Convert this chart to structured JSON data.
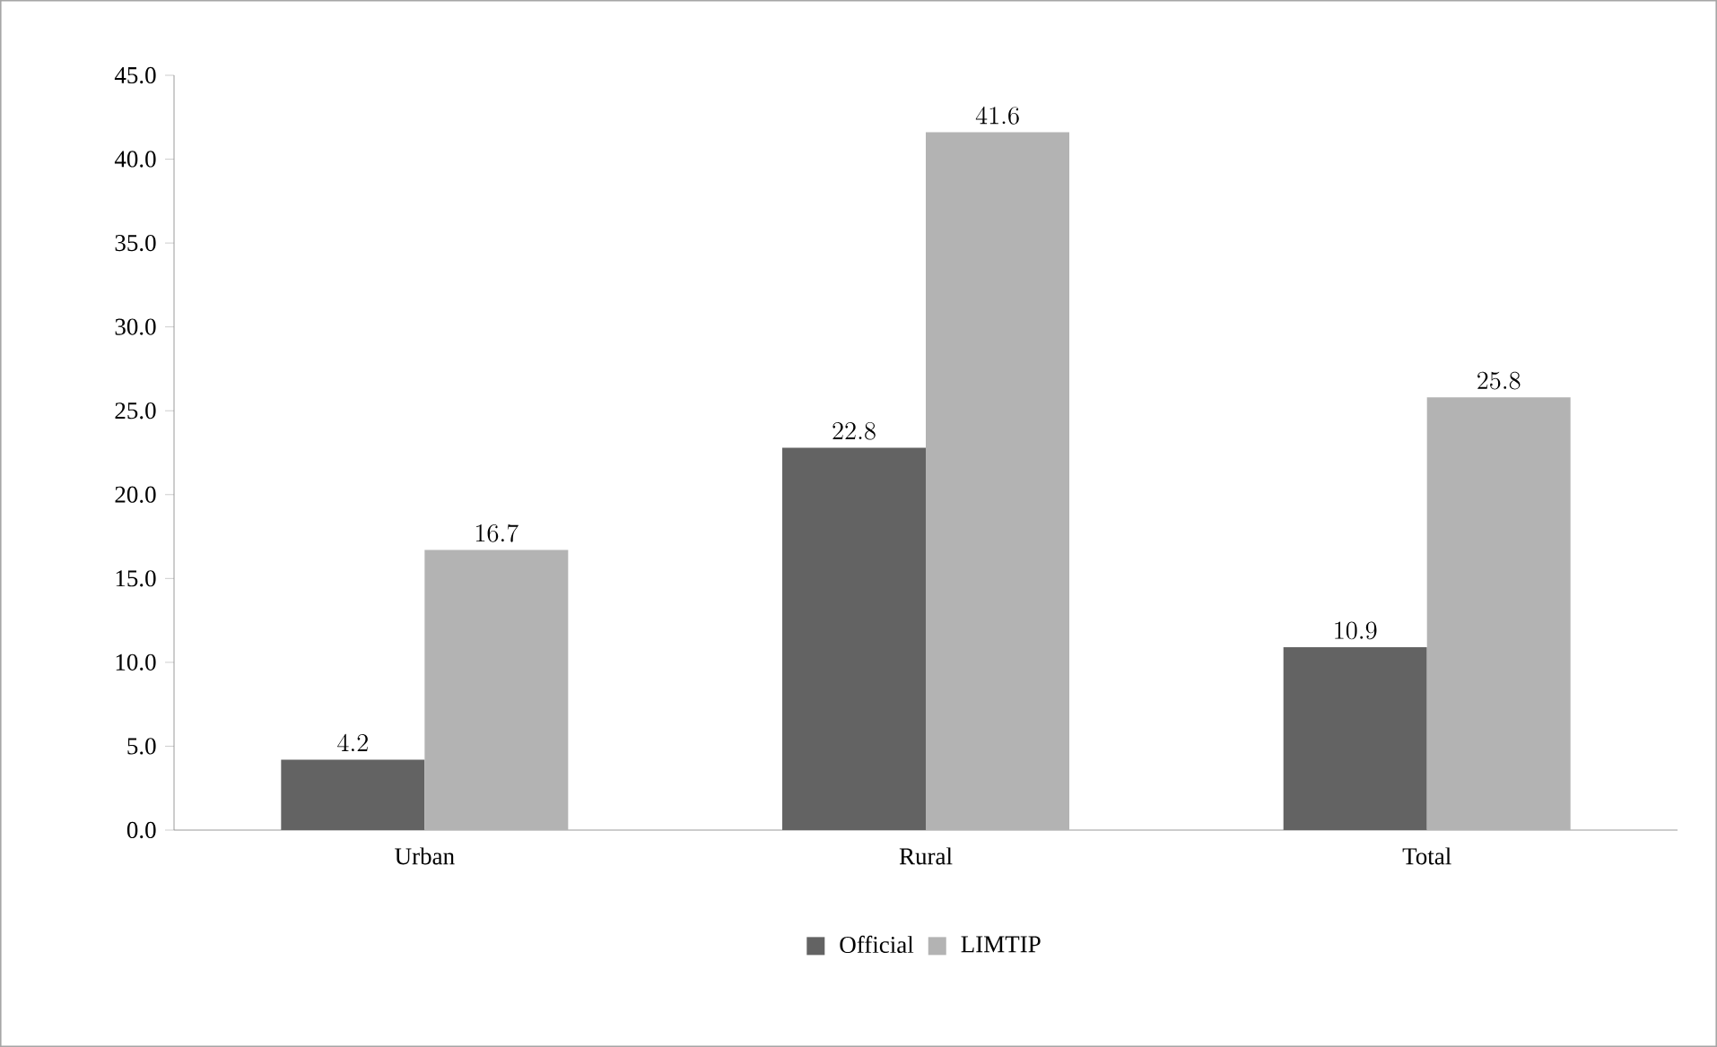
{
  "chart_data": {
    "type": "bar",
    "categories": [
      "Urban",
      "Rural",
      "Total"
    ],
    "series": [
      {
        "name": "Official",
        "color": "#636363",
        "values": [
          4.2,
          22.8,
          10.9
        ]
      },
      {
        "name": "LIMTIP",
        "color": "#b3b3b3",
        "values": [
          16.7,
          41.6,
          25.8
        ]
      }
    ],
    "ylim": [
      0,
      45
    ],
    "yticks": [
      {
        "value": 0,
        "label": "0.0"
      },
      {
        "value": 5,
        "label": "5.0"
      },
      {
        "value": 10,
        "label": "10.0"
      },
      {
        "value": 15,
        "label": "15.0"
      },
      {
        "value": 20,
        "label": "20.0"
      },
      {
        "value": 25,
        "label": "25.0"
      },
      {
        "value": 30,
        "label": "30.0"
      },
      {
        "value": 35,
        "label": "35.0"
      },
      {
        "value": 40,
        "label": "40.0"
      },
      {
        "value": 45,
        "label": "45.0"
      }
    ],
    "data_labels": true,
    "legend": "bottom",
    "grid": false
  }
}
